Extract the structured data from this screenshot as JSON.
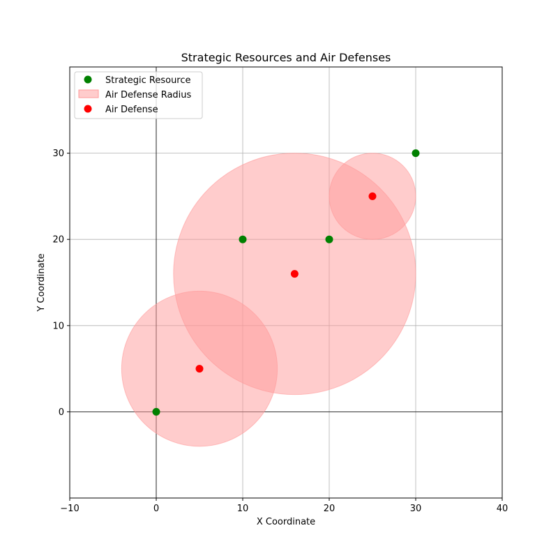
{
  "chart_data": {
    "type": "scatter",
    "title": "Strategic Resources and Air Defenses",
    "xlabel": "X Coordinate",
    "ylabel": "Y Coordinate",
    "xlim": [
      -10,
      40
    ],
    "ylim": [
      -10,
      40
    ],
    "xticks": [
      -10,
      0,
      10,
      20,
      30,
      40
    ],
    "xtick_labels": [
      "−10",
      "0",
      "10",
      "20",
      "30",
      "40"
    ],
    "yticks": [
      0,
      10,
      20,
      30
    ],
    "ytick_labels": [
      "0",
      "10",
      "20",
      "30"
    ],
    "grid": true,
    "legend_position": "upper-left",
    "resources": {
      "name": "Strategic Resource",
      "color": "#008000",
      "points": [
        {
          "x": 0,
          "y": 0
        },
        {
          "x": 10,
          "y": 20
        },
        {
          "x": 20,
          "y": 20
        },
        {
          "x": 30,
          "y": 30
        }
      ]
    },
    "defenses": {
      "name": "Air Defense",
      "radius_name": "Air Defense Radius",
      "color": "#ff0000",
      "radius_color": "#ff9999",
      "points": [
        {
          "x": 5,
          "y": 5,
          "radius": 9
        },
        {
          "x": 16,
          "y": 16,
          "radius": 14
        },
        {
          "x": 25,
          "y": 25,
          "radius": 5
        }
      ]
    }
  }
}
